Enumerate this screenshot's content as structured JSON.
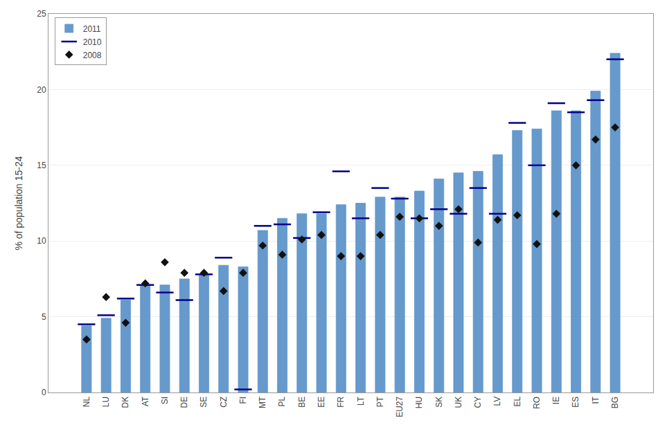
{
  "chart_data": {
    "type": "bar",
    "ylabel": "% of population 15-24",
    "categories": [
      "NL",
      "LU",
      "DK",
      "AT",
      "SI",
      "DE",
      "SE",
      "CZ",
      "FI",
      "MT",
      "PL",
      "BE",
      "EE",
      "FR",
      "LT",
      "PT",
      "EU27",
      "HU",
      "SK",
      "UK",
      "CY",
      "LV",
      "EL",
      "RO",
      "IE",
      "ES",
      "IT",
      "BG"
    ],
    "series": [
      {
        "name": "2011",
        "type": "bar",
        "color": "#6699CC",
        "values": [
          4.4,
          4.9,
          6.1,
          7.1,
          7.1,
          7.5,
          7.8,
          8.4,
          8.3,
          10.7,
          11.5,
          11.8,
          11.8,
          12.4,
          12.5,
          12.9,
          12.9,
          13.3,
          14.1,
          14.5,
          14.6,
          15.7,
          17.3,
          17.4,
          18.6,
          18.6,
          19.9,
          22.4
        ]
      },
      {
        "name": "2010",
        "type": "scatter",
        "marker": "line",
        "color": "#00008B",
        "values": [
          4.5,
          5.1,
          6.2,
          7.1,
          6.6,
          6.1,
          7.8,
          8.9,
          0.2,
          11.0,
          11.1,
          10.2,
          11.9,
          14.6,
          11.5,
          13.5,
          12.8,
          11.5,
          12.1,
          11.8,
          13.5,
          11.8,
          17.8,
          15.0,
          19.1,
          18.5,
          19.3,
          22.0
        ]
      },
      {
        "name": "2008",
        "type": "scatter",
        "marker": "diamond",
        "color": "#111111",
        "values": [
          3.5,
          6.3,
          4.6,
          7.2,
          8.6,
          7.9,
          7.9,
          6.7,
          7.9,
          9.7,
          9.1,
          10.1,
          10.4,
          9.0,
          9.0,
          10.4,
          11.6,
          11.5,
          11.0,
          12.1,
          9.9,
          11.4,
          11.7,
          9.8,
          11.8,
          15.0,
          16.7,
          17.5
        ]
      }
    ],
    "ylim": [
      0,
      25
    ],
    "yticks": [
      0,
      5,
      10,
      15,
      20,
      25
    ],
    "grid": true,
    "legend": "upper left"
  }
}
